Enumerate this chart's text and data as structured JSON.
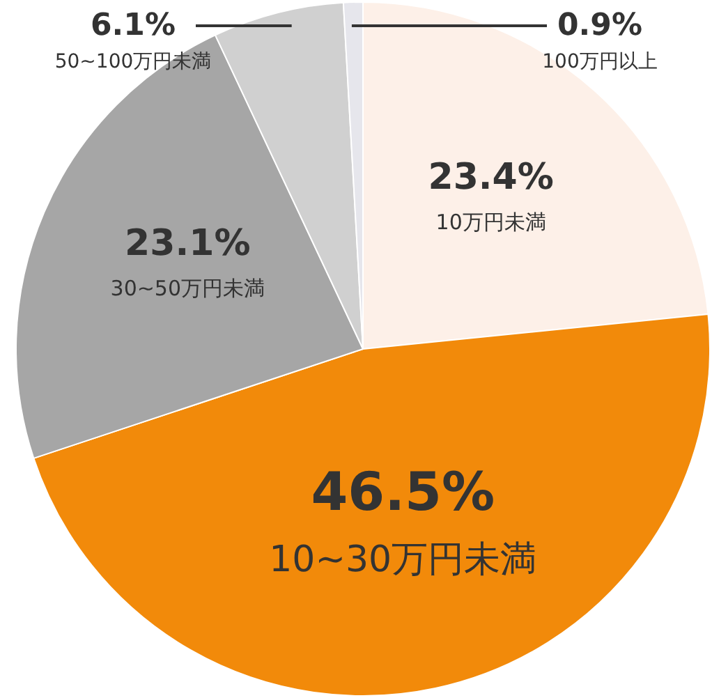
{
  "chart_data": {
    "type": "pie",
    "categories": [
      "10万円未満",
      "10~30万円未満",
      "30~50万円未満",
      "50~100万円未満",
      "100万円以上"
    ],
    "values": [
      23.4,
      46.5,
      23.1,
      6.1,
      0.9
    ],
    "colors": [
      "#fdf0e8",
      "#f28a0a",
      "#a6a6a6",
      "#d0d0d0",
      "#e6e6ec"
    ],
    "value_labels": [
      "23.4%",
      "46.5%",
      "23.1%",
      "6.1%",
      "0.9%"
    ]
  }
}
